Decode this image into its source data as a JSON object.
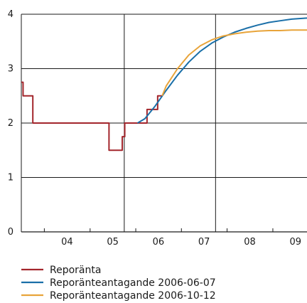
{
  "chart_data": {
    "type": "line",
    "title": "",
    "xlabel": "",
    "ylabel": "",
    "ylim": [
      0,
      4
    ],
    "yticks": [
      "0",
      "1",
      "2",
      "3",
      "4"
    ],
    "xlim": [
      "2003-07-01",
      "2009-10-01"
    ],
    "xtick_labels": [
      "04",
      "05",
      "06",
      "07",
      "08",
      "09"
    ],
    "year_starts": [
      "2004-01-01",
      "2005-01-01",
      "2006-01-01",
      "2007-01-01",
      "2008-01-01",
      "2009-01-01"
    ],
    "year_dividers": [
      "2005-10-01",
      "2007-10-01"
    ],
    "grid": true,
    "legend_position": "bottom",
    "series": [
      {
        "name": "Reporänta",
        "color": "#a3262c",
        "step": true,
        "x": [
          "2003-07-01",
          "2003-07-15",
          "2003-10-01",
          "2005-06-01",
          "2005-09-15",
          "2005-10-05",
          "2006-01-15",
          "2006-04-01",
          "2006-06-25",
          "2006-07-31"
        ],
        "y": [
          2.75,
          2.5,
          2.0,
          1.5,
          1.75,
          2.0,
          2.0,
          2.25,
          2.5,
          2.5
        ]
      },
      {
        "name": "Reporänteantagande 2006-06-07",
        "color": "#1a6fa8",
        "step": false,
        "x": [
          "2006-01-15",
          "2006-03-15",
          "2006-06-01",
          "2006-09-01",
          "2006-12-01",
          "2007-03-01",
          "2007-06-01",
          "2007-09-01",
          "2007-12-01",
          "2008-03-01",
          "2008-06-01",
          "2008-09-01",
          "2008-12-01",
          "2009-03-01",
          "2009-06-01",
          "2009-10-01"
        ],
        "y": [
          2.0,
          2.08,
          2.3,
          2.6,
          2.88,
          3.12,
          3.32,
          3.47,
          3.58,
          3.67,
          3.74,
          3.8,
          3.85,
          3.88,
          3.91,
          3.93
        ]
      },
      {
        "name": "Reporänteantagande 2006-10-12",
        "color": "#e8a43a",
        "step": false,
        "x": [
          "2006-07-31",
          "2006-09-01",
          "2006-12-01",
          "2007-03-01",
          "2007-06-01",
          "2007-09-01",
          "2007-12-01",
          "2008-03-01",
          "2008-06-01",
          "2008-09-01",
          "2008-12-01",
          "2009-03-01",
          "2009-06-01",
          "2009-10-01"
        ],
        "y": [
          2.5,
          2.68,
          3.0,
          3.25,
          3.42,
          3.53,
          3.6,
          3.64,
          3.67,
          3.69,
          3.7,
          3.7,
          3.71,
          3.71
        ]
      }
    ]
  }
}
